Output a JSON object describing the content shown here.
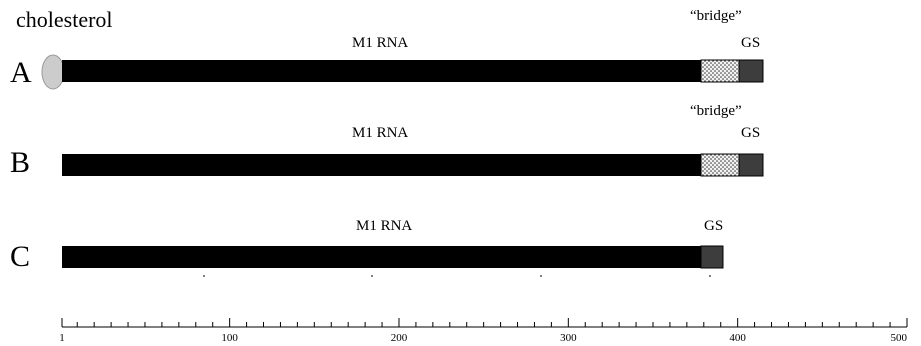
{
  "annotation": {
    "cholesterol": "cholesterol"
  },
  "rows": [
    {
      "label": "A",
      "cholesterol": true,
      "segments": [
        {
          "name": "M1 RNA",
          "start": 1,
          "end": 378,
          "fill": "#000000"
        },
        {
          "name": "“bridge”",
          "start": 378,
          "end": 400,
          "fill": "dots"
        },
        {
          "name": "GS",
          "start": 400,
          "end": 414,
          "fill": "#3d3d3d"
        }
      ]
    },
    {
      "label": "B",
      "cholesterol": false,
      "segments": [
        {
          "name": "M1 RNA",
          "start": 1,
          "end": 378,
          "fill": "#000000"
        },
        {
          "name": "“bridge”",
          "start": 378,
          "end": 400,
          "fill": "dots"
        },
        {
          "name": "GS",
          "start": 400,
          "end": 414,
          "fill": "#3d3d3d"
        }
      ]
    },
    {
      "label": "C",
      "cholesterol": false,
      "segments": [
        {
          "name": "M1 RNA",
          "start": 1,
          "end": 378,
          "fill": "#000000"
        },
        {
          "name": "GS",
          "start": 378,
          "end": 391,
          "fill": "#3d3d3d"
        }
      ]
    }
  ],
  "ruler": {
    "min": 1,
    "max": 500,
    "minor_step": 10,
    "labels": [
      "1",
      "100",
      "200",
      "300",
      "400",
      "500"
    ]
  }
}
